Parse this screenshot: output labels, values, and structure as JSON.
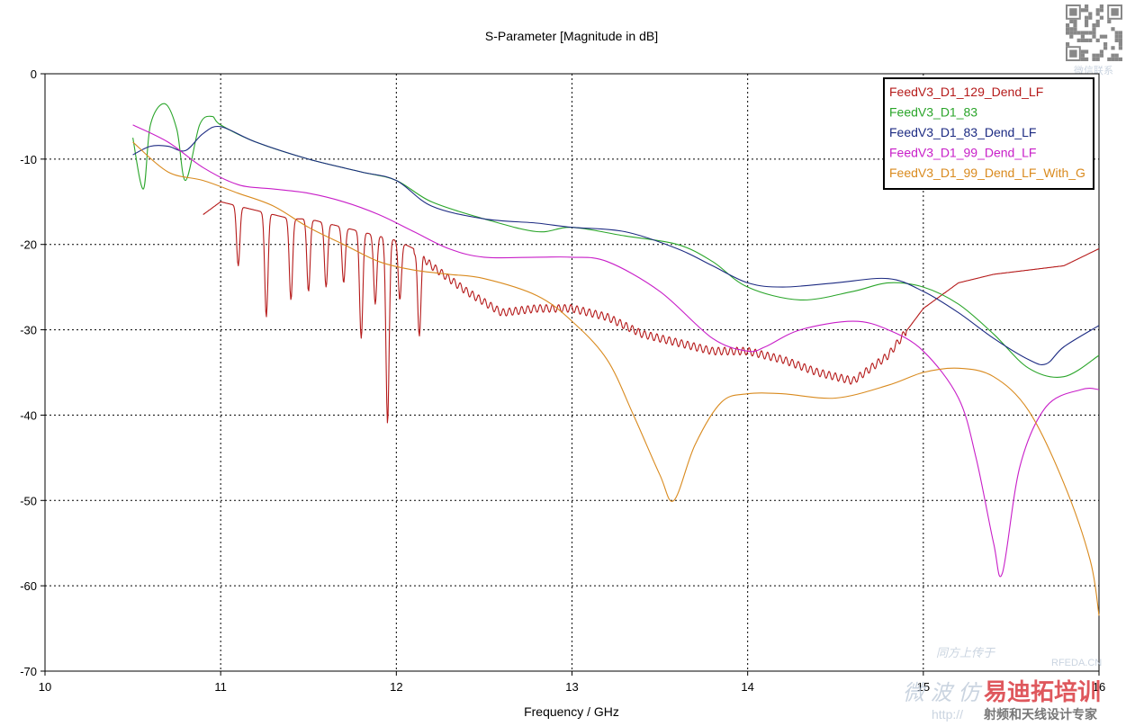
{
  "chart_data": {
    "type": "line",
    "title": "S-Parameter [Magnitude in dB]",
    "xlabel": "Frequency / GHz",
    "ylabel": "",
    "xlim": [
      10,
      16
    ],
    "ylim": [
      -70,
      0
    ],
    "xticks": [
      "10",
      "11",
      "12",
      "13",
      "14",
      "15",
      "16"
    ],
    "yticks": [
      "0",
      "-10",
      "-20",
      "-30",
      "-40",
      "-50",
      "-60",
      "-70"
    ],
    "grid": true,
    "legend_position": "top-right",
    "series": [
      {
        "name": "FeedV3_D1_129_Dend_LF",
        "color": "#b51a1a",
        "x": [
          10.9,
          11.0,
          11.1,
          11.2,
          11.3,
          11.4,
          11.5,
          11.6,
          11.7,
          11.8,
          11.9,
          12.0,
          12.1,
          12.2,
          12.4,
          12.6,
          12.8,
          13.0,
          13.2,
          13.4,
          13.6,
          13.8,
          14.0,
          14.2,
          14.4,
          14.6,
          14.8,
          15.0,
          15.2,
          15.4,
          15.6,
          15.8,
          16.0
        ],
        "values": [
          -16.5,
          -15.0,
          -15.5,
          -16.0,
          -16.5,
          -17.0,
          -17.0,
          -17.5,
          -18.0,
          -18.5,
          -19.0,
          -19.5,
          -20.5,
          -22.5,
          -25.5,
          -28.0,
          -27.5,
          -27.5,
          -28.5,
          -30.5,
          -31.5,
          -32.5,
          -32.5,
          -33.5,
          -35.0,
          -36.0,
          -33.0,
          -27.5,
          -24.5,
          -23.5,
          -23.0,
          -22.5,
          -20.5
        ],
        "dips": [
          {
            "x": 11.1,
            "min": -22.5
          },
          {
            "x": 11.26,
            "min": -28.5
          },
          {
            "x": 11.4,
            "min": -26.5
          },
          {
            "x": 11.5,
            "min": -25.5
          },
          {
            "x": 11.6,
            "min": -25.0
          },
          {
            "x": 11.7,
            "min": -24.5
          },
          {
            "x": 11.8,
            "min": -31.0
          },
          {
            "x": 11.88,
            "min": -27.0
          },
          {
            "x": 11.95,
            "min": -41.0
          },
          {
            "x": 12.02,
            "min": -26.5
          },
          {
            "x": 12.13,
            "min": -30.5
          }
        ]
      },
      {
        "name": "FeedV3_D1_83",
        "color": "#2aa52a",
        "x": [
          10.5,
          10.56,
          10.6,
          10.68,
          10.75,
          10.8,
          10.88,
          10.95,
          11.0,
          11.2,
          11.5,
          11.8,
          12.0,
          12.2,
          12.5,
          12.8,
          13.0,
          13.3,
          13.6,
          13.8,
          14.0,
          14.3,
          14.6,
          14.8,
          15.0,
          15.2,
          15.4,
          15.6,
          15.8,
          16.0
        ],
        "values": [
          -7.5,
          -13.5,
          -6.0,
          -3.5,
          -6.5,
          -12.5,
          -6.0,
          -5.0,
          -6.0,
          -8.0,
          -10.0,
          -11.5,
          -12.5,
          -15.0,
          -17.0,
          -18.5,
          -18.0,
          -19.0,
          -20.0,
          -22.0,
          -25.0,
          -26.5,
          -25.5,
          -24.5,
          -25.0,
          -27.0,
          -30.5,
          -34.5,
          -35.5,
          -33.0
        ]
      },
      {
        "name": "FeedV3_D1_83_Dend_LF",
        "color": "#1c2a82",
        "x": [
          10.5,
          10.6,
          10.7,
          10.8,
          10.9,
          11.0,
          11.2,
          11.5,
          11.8,
          12.0,
          12.2,
          12.5,
          12.8,
          13.0,
          13.3,
          13.6,
          13.8,
          14.0,
          14.2,
          14.5,
          14.8,
          15.0,
          15.2,
          15.4,
          15.6,
          15.7,
          15.8,
          16.0
        ],
        "values": [
          -9.5,
          -8.5,
          -8.5,
          -9.0,
          -7.0,
          -6.2,
          -8.0,
          -10.0,
          -11.5,
          -12.5,
          -15.5,
          -17.0,
          -17.5,
          -18.0,
          -18.5,
          -20.5,
          -22.5,
          -24.5,
          -25.0,
          -24.5,
          -24.0,
          -25.5,
          -28.0,
          -31.0,
          -33.5,
          -34.0,
          -32.0,
          -29.5
        ]
      },
      {
        "name": "FeedV3_D1_99_Dend_LF",
        "color": "#c81ec8",
        "x": [
          10.5,
          10.7,
          10.9,
          11.1,
          11.3,
          11.5,
          11.7,
          11.9,
          12.1,
          12.3,
          12.5,
          12.8,
          13.0,
          13.2,
          13.5,
          13.8,
          14.0,
          14.1,
          14.3,
          14.6,
          14.8,
          15.0,
          15.2,
          15.3,
          15.4,
          15.45,
          15.55,
          15.7,
          15.9,
          16.0
        ],
        "values": [
          -6.0,
          -8.0,
          -11.0,
          -13.0,
          -13.5,
          -14.0,
          -15.0,
          -16.5,
          -18.5,
          -20.5,
          -21.5,
          -21.5,
          -21.5,
          -22.0,
          -25.5,
          -31.0,
          -32.5,
          -32.0,
          -30.0,
          -29.0,
          -30.0,
          -32.5,
          -38.0,
          -45.0,
          -55.0,
          -58.5,
          -46.0,
          -39.0,
          -37.0,
          -37.0
        ]
      },
      {
        "name": "FeedV3_D1_99_Dend_LF_With_G",
        "color": "#d98a1e",
        "x": [
          10.5,
          10.7,
          10.9,
          11.1,
          11.3,
          11.5,
          11.7,
          11.9,
          12.1,
          12.3,
          12.5,
          12.8,
          13.0,
          13.2,
          13.35,
          13.5,
          13.58,
          13.7,
          13.85,
          14.0,
          14.2,
          14.5,
          14.8,
          15.0,
          15.2,
          15.4,
          15.6,
          15.8,
          15.95,
          16.0
        ],
        "values": [
          -8.0,
          -11.5,
          -12.5,
          -14.0,
          -15.5,
          -18.0,
          -20.0,
          -22.0,
          -23.0,
          -23.5,
          -24.0,
          -26.0,
          -29.0,
          -33.5,
          -40.0,
          -47.0,
          -50.0,
          -43.5,
          -38.5,
          -37.5,
          -37.5,
          -38.0,
          -36.5,
          -35.0,
          -34.5,
          -35.5,
          -39.5,
          -48.0,
          -57.0,
          -63.5
        ]
      }
    ]
  },
  "watermarks": {
    "qr_caption": "微信联系",
    "rfeda": "RFEDA.CN",
    "cn_left": "微 波 仿",
    "cn_brand": "易迪拓培训",
    "url": "http://",
    "slogan": "射频和天线设计专家",
    "faint_top": "同方上传于"
  }
}
